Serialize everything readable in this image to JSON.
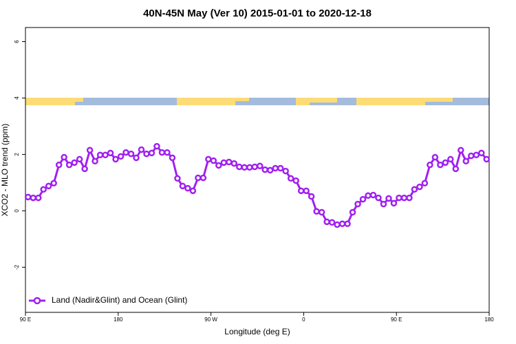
{
  "chart_data": {
    "type": "line",
    "title": "40N-45N May (Ver 10)   2015-01-01 to 2020-12-18",
    "x_label": "Longitude (deg E)",
    "y_label": "XCO2 - MLO trend (ppm)",
    "x": [
      92.5,
      97.5,
      102.5,
      107.5,
      112.5,
      117.5,
      122.5,
      127.5,
      132.5,
      137.5,
      142.5,
      147.5,
      152.5,
      157.5,
      162.5,
      167.5,
      172.5,
      177.5,
      182.5,
      187.5,
      192.5,
      197.5,
      202.5,
      207.5,
      212.5,
      217.5,
      222.5,
      227.5,
      232.5,
      237.5,
      242.5,
      247.5,
      252.5,
      257.5,
      262.5,
      267.5,
      272.5,
      277.5,
      282.5,
      287.5,
      292.5,
      297.5,
      302.5,
      307.5,
      312.5,
      317.5,
      322.5,
      327.5,
      332.5,
      337.5,
      342.5,
      347.5,
      352.5,
      357.5,
      362.5,
      367.5,
      372.5,
      377.5,
      382.5,
      387.5,
      392.5,
      397.5,
      402.5,
      407.5,
      412.5,
      417.5,
      422.5,
      427.5,
      432.5,
      437.5,
      442.5,
      447.5,
      452.5,
      457.5,
      462.5,
      467.5,
      472.5,
      477.5,
      482.5,
      487.5,
      492.5,
      497.5,
      502.5,
      507.5,
      512.5,
      517.5,
      522.5,
      527.5,
      532.5,
      537.5
    ],
    "series": [
      {
        "name": "Land (Nadir&Glint) and Ocean (Glint)",
        "color": "#a020f0",
        "values": [
          0.49,
          0.46,
          0.46,
          0.76,
          0.88,
          0.98,
          1.63,
          1.9,
          1.63,
          1.71,
          1.83,
          1.49,
          2.15,
          1.76,
          1.98,
          1.98,
          2.05,
          1.83,
          1.93,
          2.07,
          2.02,
          1.88,
          2.17,
          2.02,
          2.05,
          2.29,
          2.07,
          2.07,
          1.88,
          1.15,
          0.88,
          0.8,
          0.71,
          1.17,
          1.17,
          1.83,
          1.78,
          1.61,
          1.71,
          1.73,
          1.68,
          1.56,
          1.54,
          1.54,
          1.56,
          1.59,
          1.46,
          1.44,
          1.51,
          1.51,
          1.41,
          1.15,
          1.07,
          0.71,
          0.71,
          0.51,
          -0.02,
          -0.05,
          -0.39,
          -0.41,
          -0.49,
          -0.46,
          -0.46,
          -0.05,
          0.24,
          0.41,
          0.54,
          0.56,
          0.46,
          0.24,
          0.44,
          0.27,
          0.46,
          0.46,
          0.46,
          0.76,
          0.85,
          0.98,
          1.63,
          1.9,
          1.63,
          1.71,
          1.83,
          1.49,
          2.15,
          1.76,
          1.95,
          1.98,
          2.05,
          1.83
        ]
      }
    ],
    "xlim": [
      90,
      540
    ],
    "xticks": [
      {
        "value": 90,
        "label": "90 E"
      },
      180,
      {
        "value": 270,
        "label": "90 W"
      },
      {
        "value": 360,
        "label": "0"
      },
      {
        "value": 450,
        "label": "90 E"
      },
      {
        "value": 540,
        "label": "180"
      }
    ],
    "ylim": [
      -3.6,
      6.5
    ],
    "yticks": [
      -2,
      0,
      2,
      4,
      6
    ]
  }
}
